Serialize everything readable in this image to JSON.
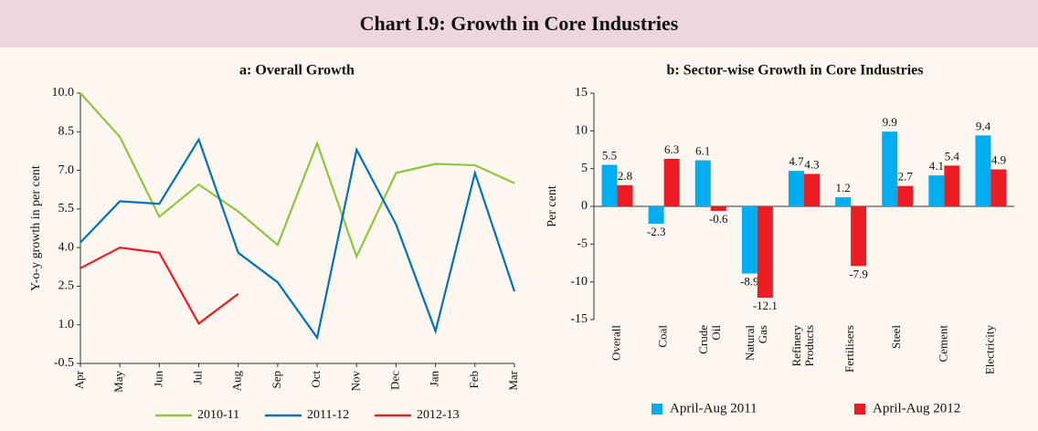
{
  "title": "Chart I.9: Growth in Core Industries",
  "chart_data": [
    {
      "type": "line",
      "title": "a: Overall Growth",
      "y_label": "Y-o-y growth in per cent",
      "categories": [
        "Apr",
        "May",
        "Jun",
        "Jul",
        "Aug",
        "Sep",
        "Oct",
        "Nov",
        "Dec",
        "Jan",
        "Feb",
        "Mar"
      ],
      "ylim": [
        -0.5,
        10.0
      ],
      "yticks": [
        {
          "value": 10.0,
          "label": "10.0"
        },
        8.5,
        {
          "value": 7.0,
          "label": "7.0"
        },
        5.5,
        {
          "value": 4.0,
          "label": "4.0"
        },
        2.5,
        {
          "value": 1.0,
          "label": "1.0"
        },
        -0.5
      ],
      "series": [
        {
          "name": "2010-11",
          "color": "#8dc63f",
          "values": [
            10.0,
            8.3,
            5.2,
            6.45,
            5.4,
            4.1,
            8.05,
            3.65,
            6.9,
            7.25,
            7.2,
            6.5
          ]
        },
        {
          "name": "2011-12",
          "color": "#0072bc",
          "values": [
            4.2,
            5.8,
            5.7,
            8.2,
            3.8,
            2.65,
            0.5,
            7.8,
            4.9,
            0.75,
            6.9,
            2.3
          ]
        },
        {
          "name": "2012-13",
          "color": "#ed1c24",
          "values": [
            3.2,
            4.0,
            3.8,
            1.05,
            2.2,
            null,
            null,
            null,
            null,
            null,
            null,
            null
          ]
        }
      ]
    },
    {
      "type": "bar",
      "title": "b: Sector-wise Growth in Core Industries",
      "y_label": "Per cent",
      "categories": [
        "Overall",
        "Coal",
        "Crude Oil",
        "Natural Gas",
        "Refinery Products",
        "Fertilisers",
        "Steel",
        "Cement",
        "Electricity"
      ],
      "ylim": [
        -15,
        15
      ],
      "yticks": [
        15,
        10,
        5,
        0,
        -5,
        -10,
        -15
      ],
      "series": [
        {
          "name": "April-Aug 2011",
          "color": "#00aeef",
          "values": [
            5.5,
            -2.3,
            6.1,
            -8.9,
            4.7,
            1.2,
            9.9,
            4.1,
            9.4
          ]
        },
        {
          "name": "April-Aug 2012",
          "color": "#ed1c24",
          "values": [
            2.8,
            6.3,
            -0.6,
            -12.1,
            4.3,
            -7.9,
            2.7,
            5.4,
            4.9
          ]
        }
      ]
    }
  ]
}
